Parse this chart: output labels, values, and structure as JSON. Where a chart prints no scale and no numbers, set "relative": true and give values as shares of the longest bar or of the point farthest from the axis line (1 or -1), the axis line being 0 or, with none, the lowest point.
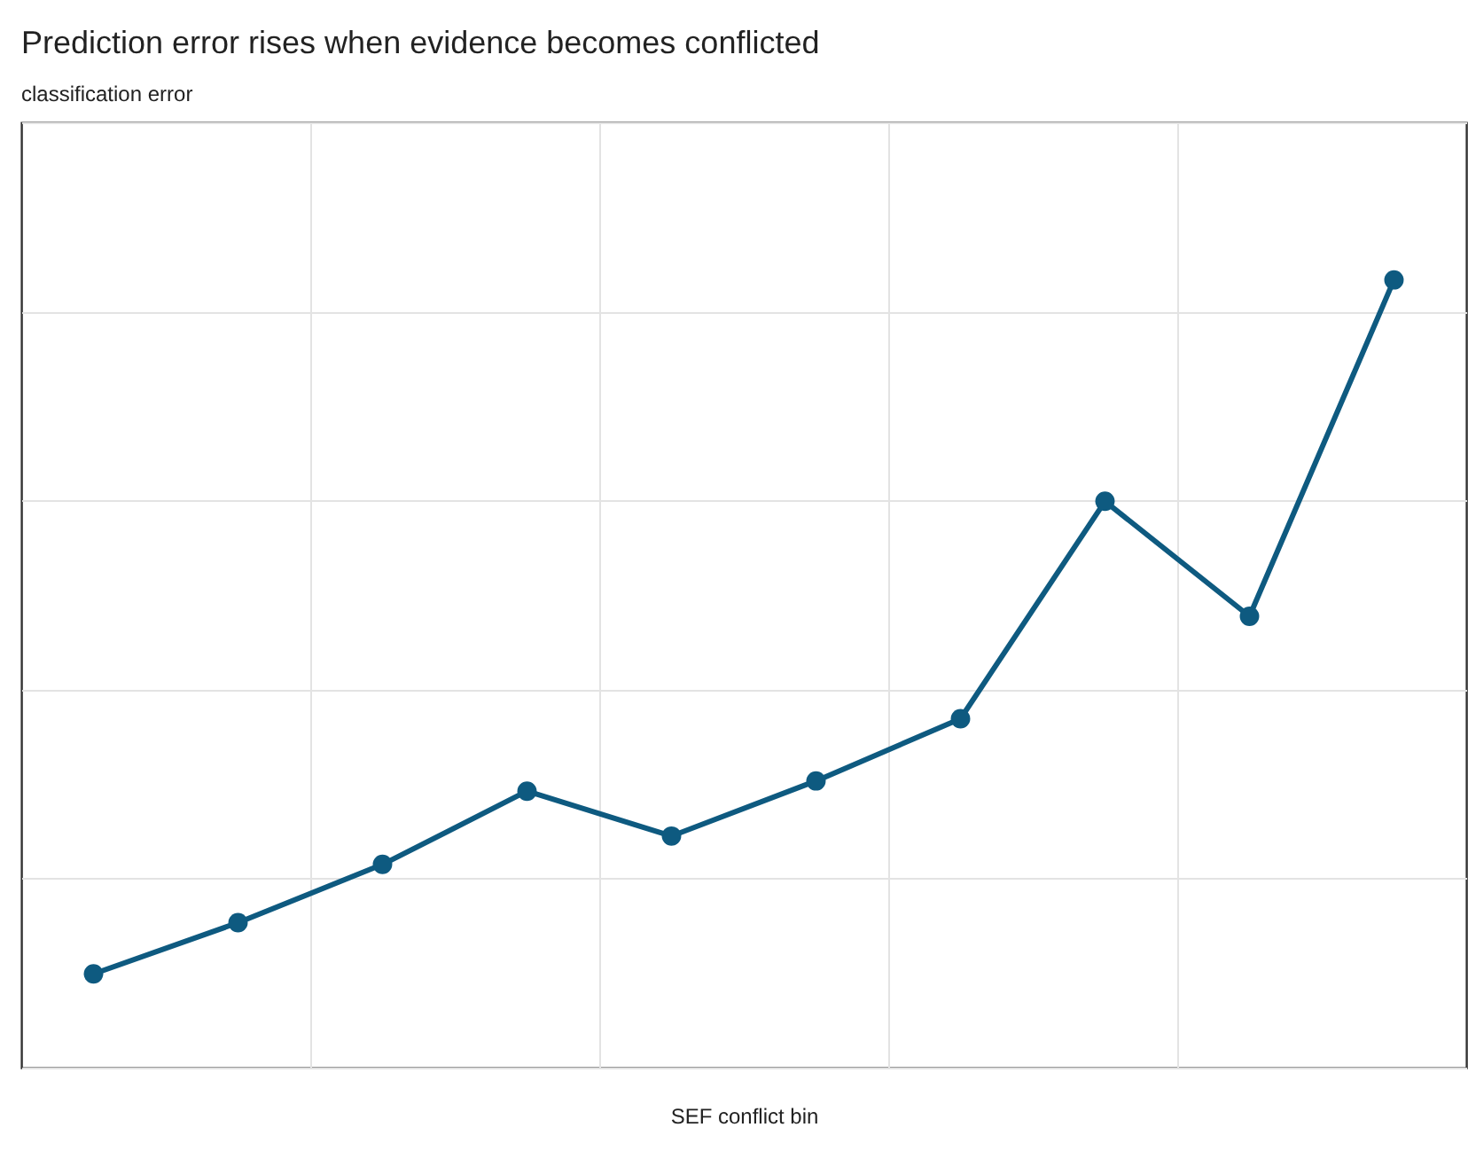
{
  "chart_data": {
    "type": "line",
    "title": "Prediction error rises when evidence becomes conflicted",
    "annotations": [
      "classification error"
    ],
    "xlabel": "SEF conflict bin",
    "relative": true,
    "categories": [
      null,
      null,
      null,
      null,
      null,
      null,
      null,
      null,
      null,
      null
    ],
    "series": [
      {
        "color": "#0e5a80",
        "values": [
          0.119,
          0.184,
          0.258,
          0.351,
          0.294,
          0.364,
          0.443,
          0.719,
          0.573,
          1.0
        ]
      }
    ],
    "grid": true,
    "marker": "circle",
    "line_style": "solid",
    "tick_labels": false
  }
}
